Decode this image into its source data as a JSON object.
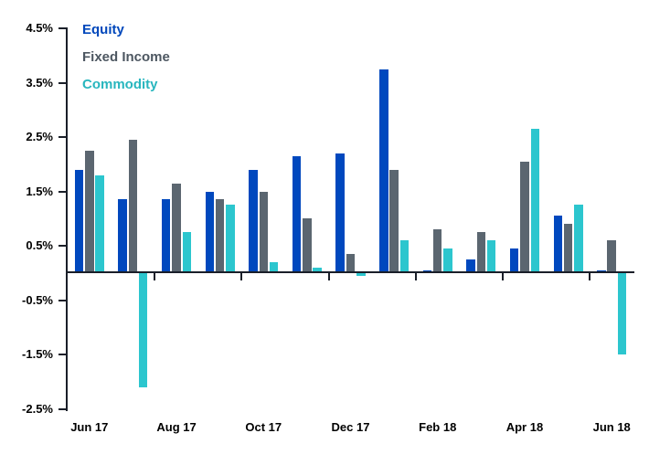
{
  "chart_data": {
    "type": "bar",
    "title": "",
    "xlabel": "",
    "ylabel": "",
    "grid": false,
    "legend_position": "top-left-inside",
    "categories": [
      "Jun 17",
      "Jul 17",
      "Aug 17",
      "Sep 17",
      "Oct 17",
      "Nov 17",
      "Dec 17",
      "Jan 18",
      "Feb 18",
      "Mar 18",
      "Apr 18",
      "May 18",
      "Jun 18"
    ],
    "series": [
      {
        "name": "Equity",
        "color": "#0048BE",
        "legend_color": "#0047BB",
        "values": [
          1.9,
          1.35,
          1.35,
          1.5,
          1.9,
          2.15,
          2.2,
          3.75,
          0.05,
          0.25,
          0.45,
          1.05,
          0.05
        ]
      },
      {
        "name": "Fixed Income",
        "color": "#5B6670",
        "legend_color": "#4D5761",
        "values": [
          2.25,
          2.45,
          1.65,
          1.35,
          1.5,
          1.0,
          0.35,
          1.9,
          0.8,
          0.75,
          2.05,
          0.9,
          0.6
        ]
      },
      {
        "name": "Commodity",
        "color": "#2CC6CE",
        "legend_color": "#28B6BE",
        "values": [
          1.8,
          -2.1,
          0.75,
          1.25,
          0.2,
          0.1,
          -0.05,
          0.6,
          0.45,
          0.6,
          2.65,
          1.25,
          -1.5
        ]
      }
    ],
    "ylim": [
      -2.5,
      4.5
    ],
    "y_ticks": [
      4.5,
      3.5,
      2.5,
      1.5,
      0.5,
      -0.5,
      -1.5,
      -2.5
    ],
    "y_tick_labels": [
      "4.5%",
      "3.5%",
      "2.5%",
      "1.5%",
      "0.5%",
      "-0.5%",
      "-1.5%",
      "-2.5%"
    ],
    "x_axis_labels": [
      "Jun 17",
      "Aug 17",
      "Oct 17",
      "Dec 17",
      "Feb 18",
      "Apr 18",
      "Jun 18"
    ],
    "x_label_category_index": [
      0,
      2,
      4,
      6,
      8,
      10,
      12
    ],
    "x_tick_boundary_index": [
      2,
      4,
      6,
      8,
      10,
      12
    ],
    "axis_color": "#1a1f29",
    "text_color": "#000000"
  }
}
